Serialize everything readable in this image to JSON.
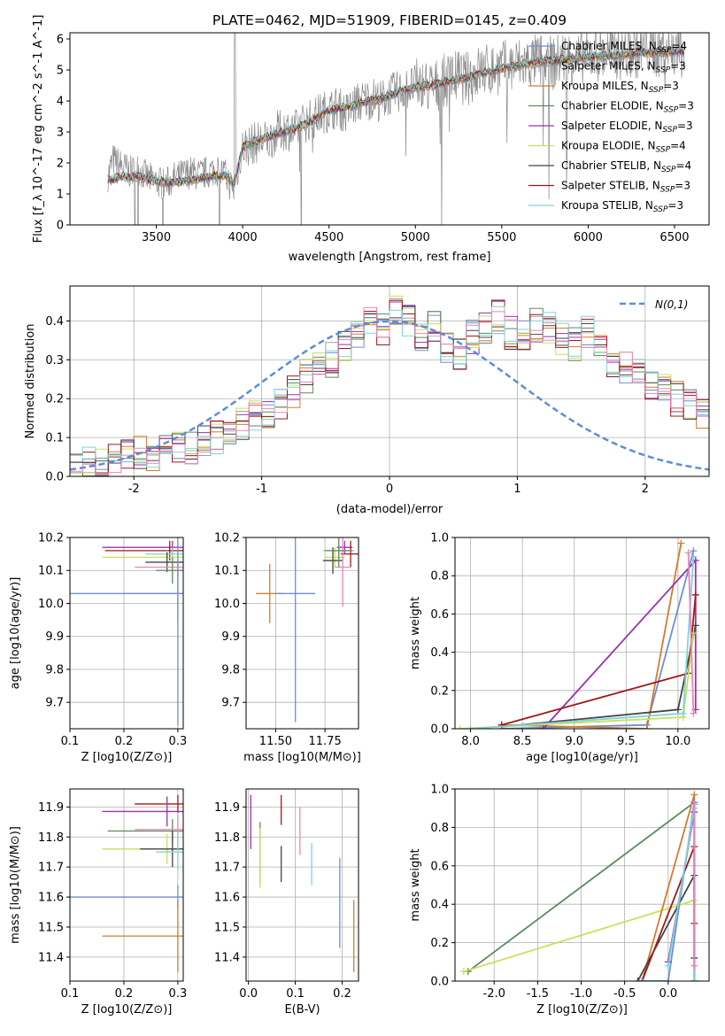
{
  "chart_data": [
    {
      "type": "line",
      "title": "PLATE=0462, MJD=51909, FIBERID=0145, z=0.409",
      "xlabel": "wavelength [Angstrom, rest frame]",
      "ylabel": "Flux [f_λ 10^-17 erg cm^-2 s^-1 A^-1]",
      "xlim": [
        3000,
        6700
      ],
      "ylim": [
        0,
        6.2
      ],
      "xticks": [
        3500,
        4000,
        4500,
        5000,
        5500,
        6000,
        6500
      ],
      "yticks": [
        0,
        1,
        2,
        3,
        4,
        5,
        6
      ],
      "grid": false,
      "legend_position": "top-right",
      "data_spectrum": {
        "x": [
          3220,
          3250,
          3300,
          3350,
          3400,
          3450,
          3500,
          3550,
          3600,
          3650,
          3700,
          3750,
          3800,
          3850,
          3900,
          3950,
          4000,
          4050,
          4100,
          4150,
          4200,
          4250,
          4300,
          4350,
          4400,
          4450,
          4500,
          4550,
          4600,
          4650,
          4700,
          4750,
          4800,
          4850,
          4900,
          4950,
          5000,
          5050,
          5100,
          5150,
          5200,
          5250,
          5300,
          5350,
          5400,
          5450,
          5500,
          5550,
          5600,
          5650,
          5700,
          5750,
          5800,
          5850,
          5900,
          5950,
          6000,
          6050,
          6100,
          6150,
          6200,
          6250,
          6300,
          6350,
          6400,
          6450,
          6500,
          6550
        ],
        "y": [
          1.6,
          2.1,
          1.9,
          1.7,
          1.8,
          1.5,
          1.4,
          1.3,
          1.5,
          1.6,
          1.7,
          1.6,
          1.7,
          1.8,
          1.6,
          1.1,
          2.5,
          2.6,
          2.7,
          2.7,
          3.0,
          3.1,
          3.0,
          3.3,
          3.4,
          3.6,
          3.7,
          3.8,
          3.6,
          3.9,
          4.0,
          4.1,
          4.0,
          4.2,
          4.3,
          4.4,
          4.5,
          4.5,
          4.4,
          4.6,
          4.7,
          4.8,
          4.7,
          4.9,
          5.0,
          5.0,
          5.1,
          5.1,
          5.2,
          5.2,
          5.3,
          5.3,
          5.2,
          5.4,
          5.4,
          5.3,
          5.5,
          5.5,
          5.5,
          5.6,
          5.5,
          5.6,
          5.6,
          5.7,
          5.6,
          5.7,
          5.6,
          5.6
        ]
      },
      "series": [
        {
          "name": "Chabrier MILES, N_SSP=4",
          "color": "#6b8fd6"
        },
        {
          "name": "Salpeter MILES, N_SSP=3",
          "color": "#a0a0a0"
        },
        {
          "name": "Kroupa MILES, N_SSP=3",
          "color": "#d87a2a"
        },
        {
          "name": "Chabrier ELODIE, N_SSP=3",
          "color": "#5b8a5e"
        },
        {
          "name": "Salpeter ELODIE, N_SSP=3",
          "color": "#9b30b0"
        },
        {
          "name": "Kroupa ELODIE, N_SSP=4",
          "color": "#c9e05a"
        },
        {
          "name": "Chabrier STELIB, N_SSP=4",
          "color": "#444444"
        },
        {
          "name": "Salpeter STELIB, N_SSP=3",
          "color": "#a01818"
        },
        {
          "name": "Kroupa STELIB, N_SSP=3",
          "color": "#7ed3d8"
        }
      ],
      "model_x": [
        3220,
        3300,
        3400,
        3500,
        3600,
        3700,
        3800,
        3900,
        3950,
        4000,
        4100,
        4200,
        4300,
        4400,
        4500,
        4600,
        4700,
        4800,
        4900,
        5000,
        5100,
        5200,
        5300,
        5400,
        5500,
        5600,
        5700,
        5800,
        5900,
        6000,
        6100,
        6200,
        6300,
        6400,
        6500,
        6550
      ],
      "model_y": [
        1.45,
        1.55,
        1.55,
        1.4,
        1.35,
        1.45,
        1.55,
        1.6,
        1.3,
        2.5,
        2.75,
        2.95,
        3.1,
        3.35,
        3.7,
        3.8,
        3.95,
        4.05,
        4.3,
        4.45,
        4.5,
        4.65,
        4.75,
        4.9,
        5.05,
        5.15,
        5.25,
        5.3,
        5.35,
        5.4,
        5.45,
        5.5,
        5.55,
        5.55,
        5.6,
        5.6
      ]
    },
    {
      "type": "histogram",
      "xlabel": "(data-model)/error",
      "ylabel": "Normed distribution",
      "xlim": [
        -2.5,
        2.5
      ],
      "ylim": [
        0,
        0.49
      ],
      "xticks": [
        -2,
        -1,
        0,
        1,
        2
      ],
      "yticks": [
        0.0,
        0.1,
        0.2,
        0.3,
        0.4
      ],
      "grid": true,
      "legend_position": "top-right",
      "legend": "N(0,1)",
      "gaussian": {
        "mean": 0,
        "sigma": 1,
        "color": "#5a8fd6"
      },
      "bin_width": 0.1,
      "hist_shape": [
        0.02,
        0.03,
        0.04,
        0.04,
        0.05,
        0.06,
        0.05,
        0.07,
        0.08,
        0.07,
        0.09,
        0.1,
        0.12,
        0.14,
        0.15,
        0.17,
        0.18,
        0.22,
        0.26,
        0.28,
        0.3,
        0.33,
        0.36,
        0.4,
        0.38,
        0.42,
        0.4,
        0.35,
        0.38,
        0.33,
        0.32,
        0.36,
        0.38,
        0.41,
        0.37,
        0.36,
        0.39,
        0.38,
        0.35,
        0.34,
        0.37,
        0.32,
        0.3,
        0.28,
        0.27,
        0.24,
        0.22,
        0.2,
        0.18,
        0.16
      ]
    },
    {
      "type": "scatter",
      "xlabel": "Z [log10(Z/Z⊙)]",
      "ylabel": "age  [log10(age/yr)]",
      "xlim": [
        0.1,
        0.31
      ],
      "ylim": [
        9.62,
        10.2
      ],
      "xticks": [
        0.1,
        0.2,
        0.3
      ],
      "yticks": [
        9.7,
        9.8,
        9.9,
        10.0,
        10.1,
        10.2
      ],
      "points": [
        {
          "x": 0.29,
          "y": 10.17,
          "xerr": 0.13,
          "yerr": 0.02,
          "color": "#9b30b0"
        },
        {
          "x": 0.285,
          "y": 10.16,
          "xerr": 0.12,
          "yerr": 0.03,
          "color": "#a01818"
        },
        {
          "x": 0.29,
          "y": 10.15,
          "xerr": 0.05,
          "yerr": 0.02,
          "color": "#7ed3d8"
        },
        {
          "x": 0.28,
          "y": 10.14,
          "xerr": 0.12,
          "yerr": 0.02,
          "color": "#c9e05a"
        },
        {
          "x": 0.28,
          "y": 10.125,
          "xerr": 0.04,
          "yerr": 0.03,
          "color": "#444444"
        },
        {
          "x": 0.3,
          "y": 10.11,
          "xerr": 0.08,
          "yerr": 0.03,
          "color": "#e985b5"
        },
        {
          "x": 0.29,
          "y": 10.1,
          "xerr": 0.03,
          "yerr": 0.04,
          "color": "#5b8a5e"
        },
        {
          "x": 0.3,
          "y": 10.03,
          "xerr": 0.1,
          "yerr": 0.08,
          "color": "#d87a2a"
        },
        {
          "x": 0.3,
          "y": 10.03,
          "xerr": 0.2,
          "yerr": 0.4,
          "color": "#6b8fd6"
        }
      ]
    },
    {
      "type": "scatter",
      "xlabel": "mass [log10(M/M⊙)]",
      "ylabel": "",
      "xlim": [
        11.35,
        11.92
      ],
      "ylim": [
        9.62,
        10.2
      ],
      "xticks": [
        11.5,
        11.75
      ],
      "yticks": [
        9.7,
        9.8,
        9.9,
        10.0,
        10.1,
        10.2
      ],
      "points": [
        {
          "x": 11.85,
          "y": 10.17,
          "xerr": 0.04,
          "yerr": 0.02,
          "color": "#9b30b0"
        },
        {
          "x": 11.88,
          "y": 10.15,
          "xerr": 0.05,
          "yerr": 0.04,
          "color": "#a01818"
        },
        {
          "x": 11.82,
          "y": 10.16,
          "xerr": 0.08,
          "yerr": 0.02,
          "color": "#7ed3d8"
        },
        {
          "x": 11.8,
          "y": 10.14,
          "xerr": 0.05,
          "yerr": 0.03,
          "color": "#c9e05a"
        },
        {
          "x": 11.79,
          "y": 10.13,
          "xerr": 0.05,
          "yerr": 0.04,
          "color": "#444444"
        },
        {
          "x": 11.84,
          "y": 10.11,
          "xerr": 0.04,
          "yerr": 0.12,
          "color": "#e985b5"
        },
        {
          "x": 11.82,
          "y": 10.16,
          "xerr": 0.07,
          "yerr": 0.05,
          "color": "#5b8a5e"
        },
        {
          "x": 11.47,
          "y": 10.03,
          "xerr": 0.07,
          "yerr": 0.09,
          "color": "#d87a2a"
        },
        {
          "x": 11.6,
          "y": 10.03,
          "xerr": 0.1,
          "yerr": 0.39,
          "color": "#6b8fd6"
        }
      ]
    },
    {
      "type": "line",
      "xlabel": "age  [log10(age/yr)]",
      "ylabel": "mass weight",
      "xlim": [
        7.85,
        10.3
      ],
      "ylim": [
        0,
        1.0
      ],
      "xticks": [
        8.0,
        8.5,
        9.0,
        9.5,
        10.0
      ],
      "yticks": [
        0.0,
        0.2,
        0.4,
        0.6,
        0.8,
        1.0
      ],
      "series": [
        {
          "color": "#6b8fd6",
          "x": [
            8.3,
            9.7,
            10.15
          ],
          "y": [
            0.0,
            0.02,
            0.93
          ]
        },
        {
          "color": "#d87a2a",
          "x": [
            8.3,
            9.7,
            10.03
          ],
          "y": [
            0.02,
            0.0,
            0.97
          ]
        },
        {
          "color": "#9b30b0",
          "x": [
            8.7,
            10.17,
            10.17
          ],
          "y": [
            0.0,
            0.88,
            0.1
          ]
        },
        {
          "color": "#444444",
          "x": [
            8.3,
            10.0,
            10.17
          ],
          "y": [
            0.01,
            0.1,
            0.54
          ]
        },
        {
          "color": "#a01818",
          "x": [
            8.3,
            10.1,
            10.17
          ],
          "y": [
            0.02,
            0.29,
            0.7
          ]
        },
        {
          "color": "#c9e05a",
          "x": [
            7.9,
            10.05,
            10.15
          ],
          "y": [
            0.0,
            0.06,
            0.5
          ]
        },
        {
          "color": "#7ed3d8",
          "x": [
            8.0,
            10.05,
            10.15
          ],
          "y": [
            0.0,
            0.08,
            0.9
          ]
        },
        {
          "color": "#e985b5",
          "x": [
            10.1,
            10.15
          ],
          "y": [
            0.92,
            0.08
          ]
        }
      ]
    },
    {
      "type": "scatter",
      "xlabel": "Z [log10(Z/Z⊙)]",
      "ylabel": "mass [log10(M/M⊙)]",
      "xlim": [
        0.1,
        0.31
      ],
      "ylim": [
        11.32,
        11.96
      ],
      "xticks": [
        0.1,
        0.2,
        0.3
      ],
      "yticks": [
        11.4,
        11.5,
        11.6,
        11.7,
        11.8,
        11.9
      ],
      "points": [
        {
          "x": 0.3,
          "y": 11.91,
          "xerr": 0.08,
          "yerr": 0.03,
          "color": "#a01818"
        },
        {
          "x": 0.28,
          "y": 11.885,
          "xerr": 0.12,
          "yerr": 0.05,
          "color": "#9b30b0"
        },
        {
          "x": 0.29,
          "y": 11.82,
          "xerr": 0.12,
          "yerr": 0.04,
          "color": "#5b8a5e"
        },
        {
          "x": 0.3,
          "y": 11.825,
          "xerr": 0.08,
          "yerr": 0.05,
          "color": "#e985b5"
        },
        {
          "x": 0.28,
          "y": 11.76,
          "xerr": 0.12,
          "yerr": 0.05,
          "color": "#c9e05a"
        },
        {
          "x": 0.29,
          "y": 11.76,
          "xerr": 0.06,
          "yerr": 0.06,
          "color": "#444444"
        },
        {
          "x": 0.3,
          "y": 11.75,
          "xerr": 0.04,
          "yerr": 0.06,
          "color": "#7ed3d8"
        },
        {
          "x": 0.3,
          "y": 11.6,
          "xerr": 0.2,
          "yerr": 0.04,
          "color": "#6b8fd6"
        },
        {
          "x": 0.3,
          "y": 11.47,
          "xerr": 0.14,
          "yerr": 0.12,
          "color": "#d87a2a"
        }
      ]
    },
    {
      "type": "scatter",
      "xlabel": "E(B-V)",
      "ylabel": "",
      "xlim": [
        -0.005,
        0.235
      ],
      "ylim": [
        11.32,
        11.96
      ],
      "xticks": [
        0.0,
        0.1,
        0.2
      ],
      "yticks": [
        11.4,
        11.5,
        11.6,
        11.7,
        11.8,
        11.9
      ],
      "points": [
        {
          "x": 0.005,
          "y": 11.85,
          "yerr": 0.09,
          "color": "#9b30b0"
        },
        {
          "x": 0.025,
          "y": 11.75,
          "yerr": 0.1,
          "color": "#5b8a5e"
        },
        {
          "x": 0.025,
          "y": 11.73,
          "yerr": 0.1,
          "color": "#c9e05a"
        },
        {
          "x": 0.07,
          "y": 11.89,
          "yerr": 0.05,
          "color": "#a01818"
        },
        {
          "x": 0.07,
          "y": 11.71,
          "yerr": 0.06,
          "color": "#444444"
        },
        {
          "x": 0.11,
          "y": 11.82,
          "yerr": 0.08,
          "color": "#e985b5"
        },
        {
          "x": 0.135,
          "y": 11.71,
          "yerr": 0.07,
          "color": "#7ed3d8"
        },
        {
          "x": 0.195,
          "y": 11.58,
          "yerr": 0.15,
          "color": "#6b8fd6"
        },
        {
          "x": 0.225,
          "y": 11.47,
          "yerr": 0.12,
          "color": "#d87a2a"
        }
      ]
    },
    {
      "type": "line",
      "xlabel": "Z [log10(Z/Z⊙)]",
      "ylabel": "mass weight",
      "xlim": [
        -2.45,
        0.47
      ],
      "ylim": [
        0,
        1.0
      ],
      "xticks": [
        -2.0,
        -1.5,
        -1.0,
        -0.5,
        0.0
      ],
      "yticks": [
        0.0,
        0.2,
        0.4,
        0.6,
        0.8,
        1.0
      ],
      "series": [
        {
          "color": "#5b8a5e",
          "x": [
            -2.3,
            0.3,
            0.3
          ],
          "y": [
            0.05,
            0.93,
            0.0
          ]
        },
        {
          "color": "#c9e05a",
          "x": [
            -2.35,
            0.3,
            0.3
          ],
          "y": [
            0.05,
            0.42,
            0.0
          ]
        },
        {
          "color": "#d87a2a",
          "x": [
            -0.3,
            0.3,
            0.3
          ],
          "y": [
            0.0,
            0.97,
            0.0
          ]
        },
        {
          "color": "#444444",
          "x": [
            -0.35,
            0.3,
            0.3
          ],
          "y": [
            0.0,
            0.55,
            0.12
          ]
        },
        {
          "color": "#a01818",
          "x": [
            -0.3,
            0.3,
            0.3
          ],
          "y": [
            0.0,
            0.7,
            0.3
          ]
        },
        {
          "color": "#6b8fd6",
          "x": [
            -0.3,
            0.0,
            0.3
          ],
          "y": [
            0.0,
            0.0,
            0.93
          ]
        },
        {
          "color": "#9b30b0",
          "x": [
            0.0,
            0.3,
            0.3
          ],
          "y": [
            0.1,
            0.88,
            0.0
          ]
        },
        {
          "color": "#7ed3d8",
          "x": [
            0.0,
            0.3,
            0.3
          ],
          "y": [
            0.08,
            0.9,
            0.0
          ]
        },
        {
          "color": "#e985b5",
          "x": [
            0.3,
            0.3
          ],
          "y": [
            0.92,
            0.08
          ]
        }
      ]
    }
  ]
}
